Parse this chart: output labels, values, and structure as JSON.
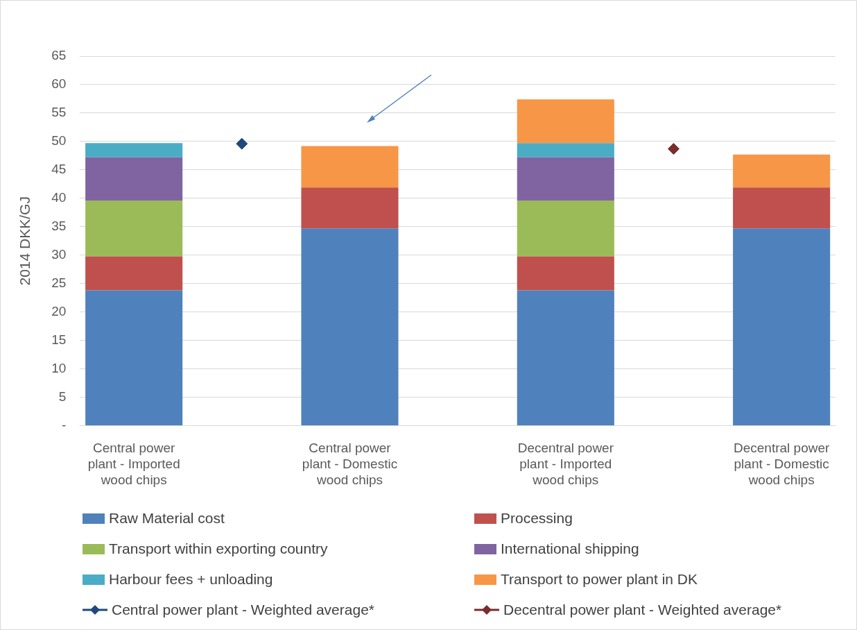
{
  "chart_data": {
    "type": "bar",
    "stacked": true,
    "ylabel": "2014 DKK/GJ",
    "categories": [
      "Central power plant - Imported wood chips",
      null,
      "Central power plant - Domestic wood chips",
      null,
      "Decentral power plant - Imported wood chips",
      null,
      "Decentral power plant - Domestic wood chips"
    ],
    "series": [
      {
        "name": "Raw Material cost",
        "color": "#4f81bd",
        "values": [
          23.8,
          null,
          34.7,
          null,
          23.8,
          null,
          34.7
        ]
      },
      {
        "name": "Processing",
        "color": "#c0504d",
        "values": [
          6.0,
          null,
          7.2,
          null,
          6.0,
          null,
          7.2
        ]
      },
      {
        "name": "Transport within exporting country",
        "color": "#9bbb59",
        "values": [
          9.8,
          null,
          null,
          null,
          9.8,
          null,
          null
        ]
      },
      {
        "name": "International shipping",
        "color": "#8064a2",
        "values": [
          7.6,
          null,
          null,
          null,
          7.6,
          null,
          null
        ]
      },
      {
        "name": "Harbour fees + unloading",
        "color": "#4bacc6",
        "values": [
          2.5,
          null,
          null,
          null,
          2.5,
          null,
          null
        ]
      },
      {
        "name": "Transport to power plant in DK",
        "color": "#f79646",
        "values": [
          null,
          null,
          7.3,
          null,
          7.7,
          null,
          5.8
        ]
      },
      {
        "name": "Central power plant - Weighted average*",
        "type": "scatter",
        "color": "#1f497d",
        "values": [
          null,
          49.6,
          null,
          null,
          null,
          null,
          null
        ]
      },
      {
        "name": "Decentral power plant - Weighted average*",
        "type": "scatter",
        "color": "#7b2c2c",
        "values": [
          null,
          null,
          null,
          null,
          null,
          48.7,
          null
        ]
      }
    ],
    "ylim": [
      0,
      65
    ],
    "yticks": [
      {
        "value": 0,
        "label": "-"
      },
      5,
      10,
      15,
      20,
      25,
      30,
      35,
      40,
      45,
      50,
      55,
      60,
      65
    ],
    "grid": "y",
    "legend": "bottom",
    "marker": "diamond"
  }
}
